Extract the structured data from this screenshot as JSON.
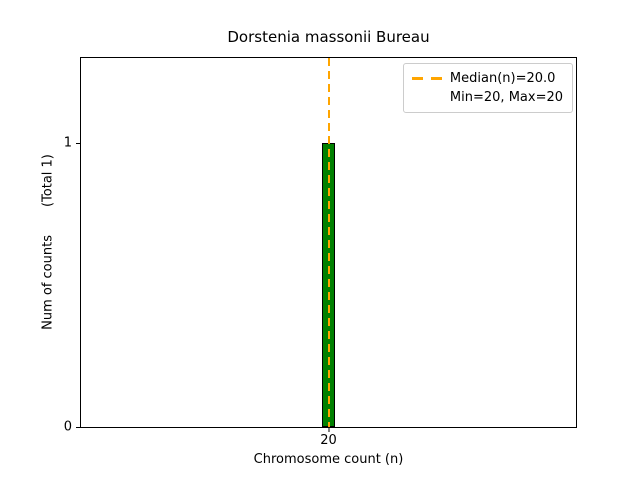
{
  "figure": {
    "title": "Dorstenia massonii Bureau",
    "xlabel": "Chromosome count (n)",
    "ylabel": "Num of counts",
    "ylabel_total": "(Total 1)"
  },
  "legend": {
    "position": "upper right",
    "entries": [
      {
        "label": "Median(n)=20.0",
        "marker": "orange-dashed-line",
        "marker_color": "#ffa500"
      },
      {
        "label": "Min=20, Max=20",
        "marker": "none"
      }
    ]
  },
  "chart_data": {
    "type": "bar",
    "title": "Dorstenia massonii Bureau",
    "xlabel": "Chromosome count (n)",
    "ylabel": "Num of counts (Total 1)",
    "total_counts": 1,
    "x": [
      20
    ],
    "counts": [
      1
    ],
    "bar_width_data": 1.1,
    "bar_color": "#008000",
    "bar_edge_color": "#000000",
    "median": 20.0,
    "min": 20,
    "max": 20,
    "median_line_color": "#ffa500",
    "median_line_style": "dashed",
    "xlim": [
      0,
      40
    ],
    "ylim": [
      0,
      1.3
    ],
    "xticks": [
      20
    ],
    "yticks": [
      0,
      1
    ],
    "grid": false,
    "legend_position": "upper right"
  }
}
